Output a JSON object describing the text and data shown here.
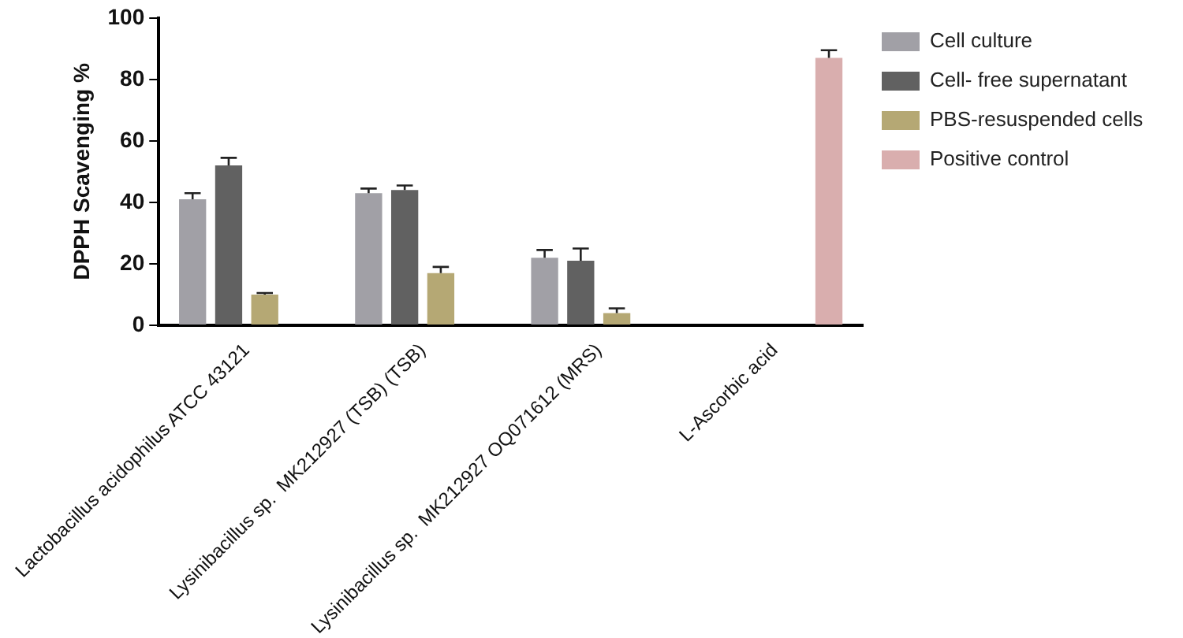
{
  "chart_data": {
    "type": "bar",
    "ylabel": "DPPH Scavenging %",
    "categories": [
      "Lactobacillus acidophilus ATCC 43121",
      "Lysinibacillus sp.  MK212927 (TSB) (TSB)",
      "Lysinibacillus sp.  MK212927 OQ071612 (MRS)",
      "L-Ascorbic acid"
    ],
    "series": [
      {
        "name": "Cell culture",
        "color": "#a1a0a6",
        "values": [
          41,
          43,
          22,
          null
        ],
        "errors": [
          2,
          1.5,
          2.5,
          null
        ]
      },
      {
        "name": "Cell- free supernatant",
        "color": "#616161",
        "values": [
          52,
          44,
          21,
          null
        ],
        "errors": [
          2.5,
          1.5,
          4,
          null
        ]
      },
      {
        "name": "PBS-resuspended cells",
        "color": "#b5a874",
        "values": [
          10,
          17,
          4,
          null
        ],
        "errors": [
          0.5,
          2,
          1.5,
          null
        ]
      },
      {
        "name": "Positive control",
        "color": "#d9aeae",
        "values": [
          null,
          null,
          null,
          87
        ],
        "errors": [
          null,
          null,
          null,
          2.5
        ]
      }
    ],
    "ylim": [
      0,
      100
    ],
    "yticks": [
      0,
      20,
      40,
      60,
      80,
      100
    ],
    "grid": false,
    "legend": "top right"
  }
}
